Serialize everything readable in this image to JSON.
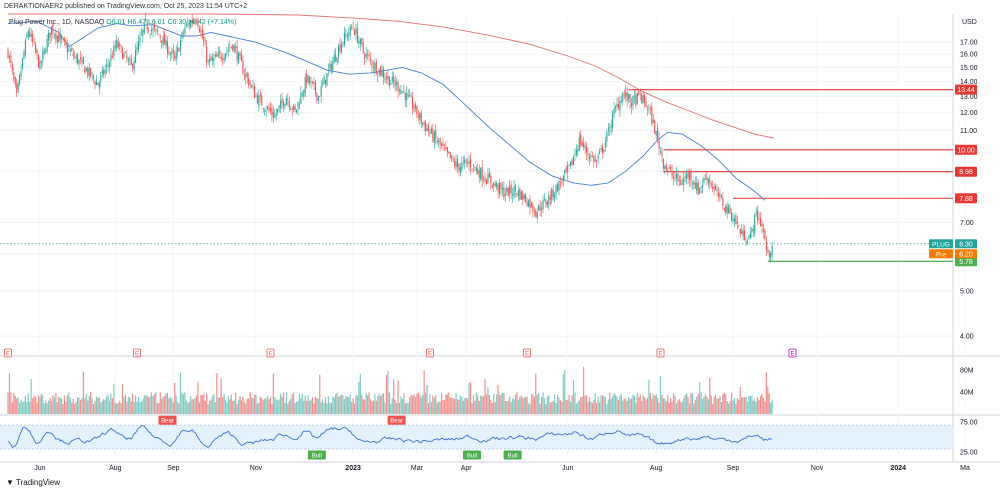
{
  "header": {
    "published_text": "DERAKTIONAER2 published on TradingView.com, Oct 25, 2023 11:54 UTC+2"
  },
  "legend": {
    "symbol": "Plug Power Inc., 1D, NASDAQ",
    "open": "O6.01",
    "high": "H6.47",
    "low": "L6.01",
    "close": "C6.30",
    "change": "+0.42 (+7.14%)"
  },
  "currency_label": "USD",
  "footer": {
    "brand": "TradingView"
  },
  "colors": {
    "up": "#26a69a",
    "down": "#ef5350",
    "ma_short": "#4a7dd6",
    "ma_long": "#e57373",
    "level_line": "#e53935",
    "pre_line": "#43a047",
    "rsi_line": "#3f6fd1",
    "rsi_band": "#e3f2fd",
    "earnings": "#ef5350",
    "earnings_future": "#d400d4"
  },
  "chart_data": [
    {
      "type": "candlestick",
      "name": "price",
      "y_axis": "log",
      "ylim": [
        3.7,
        19.5
      ],
      "y_ticks": [
        "17.00",
        "16.00",
        "15.00",
        "14.00",
        "13.00",
        "12.00",
        "11.00",
        "9.00",
        "7.00",
        "6.00",
        "5.00",
        "4.00"
      ],
      "x_ticks": [
        "Jun",
        "Aug",
        "Sep",
        "Nov",
        "2023",
        "Mar",
        "Apr",
        "Jun",
        "Aug",
        "Sep",
        "Nov",
        "2024",
        "Ma"
      ],
      "last": 6.3,
      "horizontal_levels": [
        {
          "label": "13.44",
          "value": 13.44,
          "from": "Jul"
        },
        {
          "label": "10.00",
          "value": 10.0,
          "from": "Aug"
        },
        {
          "label": "8.98",
          "value": 8.98,
          "from": "Aug"
        },
        {
          "label": "7.88",
          "value": 7.88,
          "from": "Sep"
        },
        {
          "label": "5.78",
          "value": 5.78,
          "from": "Oct"
        }
      ],
      "price_tags": [
        {
          "label": "PLUG",
          "value": "6.30"
        },
        {
          "label": "Pre",
          "value": "6.20"
        }
      ],
      "earnings_markers": [
        "E",
        "E",
        "E",
        "E",
        "E",
        "E",
        "E"
      ],
      "anchors": [
        {
          "t": 0,
          "p": 16.2
        },
        {
          "t": 6,
          "p": 12.9
        },
        {
          "t": 14,
          "p": 18.0
        },
        {
          "t": 22,
          "p": 15.0
        },
        {
          "t": 30,
          "p": 18.2
        },
        {
          "t": 40,
          "p": 16.5
        },
        {
          "t": 50,
          "p": 15.3
        },
        {
          "t": 62,
          "p": 13.8
        },
        {
          "t": 68,
          "p": 15.0
        },
        {
          "t": 75,
          "p": 16.8
        },
        {
          "t": 85,
          "p": 15.0
        },
        {
          "t": 95,
          "p": 18.5
        },
        {
          "t": 105,
          "p": 17.5
        },
        {
          "t": 115,
          "p": 15.5
        },
        {
          "t": 122,
          "p": 18.2
        },
        {
          "t": 130,
          "p": 19.3
        },
        {
          "t": 138,
          "p": 15.3
        },
        {
          "t": 146,
          "p": 15.8
        },
        {
          "t": 155,
          "p": 16.8
        },
        {
          "t": 163,
          "p": 14.6
        },
        {
          "t": 171,
          "p": 13.0
        },
        {
          "t": 178,
          "p": 12.3
        },
        {
          "t": 184,
          "p": 11.8
        },
        {
          "t": 192,
          "p": 13.0
        },
        {
          "t": 198,
          "p": 12.0
        },
        {
          "t": 206,
          "p": 14.2
        },
        {
          "t": 214,
          "p": 13.0
        },
        {
          "t": 222,
          "p": 14.9
        },
        {
          "t": 230,
          "p": 17.0
        },
        {
          "t": 238,
          "p": 18.3
        },
        {
          "t": 245,
          "p": 16.2
        },
        {
          "t": 252,
          "p": 15.2
        },
        {
          "t": 258,
          "p": 14.6
        },
        {
          "t": 264,
          "p": 14.0
        },
        {
          "t": 270,
          "p": 13.6
        },
        {
          "t": 278,
          "p": 12.6
        },
        {
          "t": 286,
          "p": 11.4
        },
        {
          "t": 294,
          "p": 10.6
        },
        {
          "t": 302,
          "p": 9.8
        },
        {
          "t": 310,
          "p": 9.2
        },
        {
          "t": 318,
          "p": 9.4
        },
        {
          "t": 326,
          "p": 8.9
        },
        {
          "t": 334,
          "p": 8.5
        },
        {
          "t": 342,
          "p": 8.1
        },
        {
          "t": 350,
          "p": 8.2
        },
        {
          "t": 358,
          "p": 7.8
        },
        {
          "t": 364,
          "p": 7.4
        },
        {
          "t": 370,
          "p": 7.7
        },
        {
          "t": 376,
          "p": 8.1
        },
        {
          "t": 382,
          "p": 8.6
        },
        {
          "t": 388,
          "p": 9.2
        },
        {
          "t": 394,
          "p": 10.5
        },
        {
          "t": 400,
          "p": 9.8
        },
        {
          "t": 406,
          "p": 9.4
        },
        {
          "t": 412,
          "p": 10.4
        },
        {
          "t": 418,
          "p": 12.0
        },
        {
          "t": 424,
          "p": 13.2
        },
        {
          "t": 430,
          "p": 12.6
        },
        {
          "t": 436,
          "p": 13.0
        },
        {
          "t": 442,
          "p": 12.2
        },
        {
          "t": 448,
          "p": 10.5
        },
        {
          "t": 452,
          "p": 9.4
        },
        {
          "t": 458,
          "p": 8.8
        },
        {
          "t": 464,
          "p": 8.5
        },
        {
          "t": 470,
          "p": 8.9
        },
        {
          "t": 476,
          "p": 8.2
        },
        {
          "t": 482,
          "p": 8.8
        },
        {
          "t": 488,
          "p": 8.1
        },
        {
          "t": 494,
          "p": 7.6
        },
        {
          "t": 500,
          "p": 7.2
        },
        {
          "t": 506,
          "p": 6.6
        },
        {
          "t": 512,
          "p": 6.5
        },
        {
          "t": 516,
          "p": 7.3
        },
        {
          "t": 520,
          "p": 6.9
        },
        {
          "t": 524,
          "p": 5.9
        },
        {
          "t": 527,
          "p": 6.3
        }
      ],
      "ma_short": [
        {
          "t": 0,
          "p": 18.6
        },
        {
          "t": 20,
          "p": 18.8
        },
        {
          "t": 35,
          "p": 17.8
        },
        {
          "t": 42,
          "p": 16.6
        },
        {
          "t": 50,
          "p": 17.2
        },
        {
          "t": 62,
          "p": 18.2
        },
        {
          "t": 75,
          "p": 18.6
        },
        {
          "t": 85,
          "p": 18.4
        },
        {
          "t": 100,
          "p": 18.5
        },
        {
          "t": 110,
          "p": 18.0
        },
        {
          "t": 120,
          "p": 17.5
        },
        {
          "t": 130,
          "p": 17.5
        },
        {
          "t": 140,
          "p": 17.8
        },
        {
          "t": 155,
          "p": 17.4
        },
        {
          "t": 170,
          "p": 17.0
        },
        {
          "t": 190,
          "p": 16.2
        },
        {
          "t": 205,
          "p": 15.5
        },
        {
          "t": 220,
          "p": 14.8
        },
        {
          "t": 235,
          "p": 14.5
        },
        {
          "t": 250,
          "p": 14.6
        },
        {
          "t": 262,
          "p": 14.8
        },
        {
          "t": 272,
          "p": 15.0
        },
        {
          "t": 285,
          "p": 14.6
        },
        {
          "t": 300,
          "p": 13.8
        },
        {
          "t": 315,
          "p": 12.5
        },
        {
          "t": 330,
          "p": 11.3
        },
        {
          "t": 345,
          "p": 10.3
        },
        {
          "t": 360,
          "p": 9.4
        },
        {
          "t": 375,
          "p": 8.8
        },
        {
          "t": 390,
          "p": 8.5
        },
        {
          "t": 402,
          "p": 8.4
        },
        {
          "t": 414,
          "p": 8.5
        },
        {
          "t": 426,
          "p": 9.0
        },
        {
          "t": 438,
          "p": 9.7
        },
        {
          "t": 448,
          "p": 10.5
        },
        {
          "t": 455,
          "p": 10.9
        },
        {
          "t": 465,
          "p": 10.8
        },
        {
          "t": 478,
          "p": 10.2
        },
        {
          "t": 490,
          "p": 9.5
        },
        {
          "t": 502,
          "p": 8.7
        },
        {
          "t": 514,
          "p": 8.2
        },
        {
          "t": 522,
          "p": 7.8
        }
      ],
      "ma_long": [
        {
          "t": 0,
          "p": 19.5
        },
        {
          "t": 140,
          "p": 19.5
        },
        {
          "t": 200,
          "p": 19.4
        },
        {
          "t": 240,
          "p": 19.1
        },
        {
          "t": 270,
          "p": 18.8
        },
        {
          "t": 300,
          "p": 18.3
        },
        {
          "t": 330,
          "p": 17.6
        },
        {
          "t": 360,
          "p": 16.8
        },
        {
          "t": 385,
          "p": 15.9
        },
        {
          "t": 405,
          "p": 15.1
        },
        {
          "t": 422,
          "p": 14.2
        },
        {
          "t": 438,
          "p": 13.3
        },
        {
          "t": 455,
          "p": 12.6
        },
        {
          "t": 470,
          "p": 12.1
        },
        {
          "t": 485,
          "p": 11.6
        },
        {
          "t": 500,
          "p": 11.2
        },
        {
          "t": 515,
          "p": 10.8
        },
        {
          "t": 528,
          "p": 10.6
        }
      ]
    },
    {
      "type": "bar",
      "name": "volume",
      "y_ticks": [
        "80M",
        "40M"
      ],
      "ylim": [
        0,
        95
      ]
    },
    {
      "type": "line",
      "name": "rsi",
      "y_ticks": [
        "75.00",
        "25.00"
      ],
      "ylim": [
        15,
        85
      ],
      "band": [
        30,
        70
      ],
      "signal_labels": [
        {
          "label": "Bear",
          "t": 110
        },
        {
          "label": "Bull",
          "t": 213
        },
        {
          "label": "Bear",
          "t": 268
        },
        {
          "label": "Bull",
          "t": 320
        },
        {
          "label": "Bull",
          "t": 348
        }
      ]
    }
  ]
}
